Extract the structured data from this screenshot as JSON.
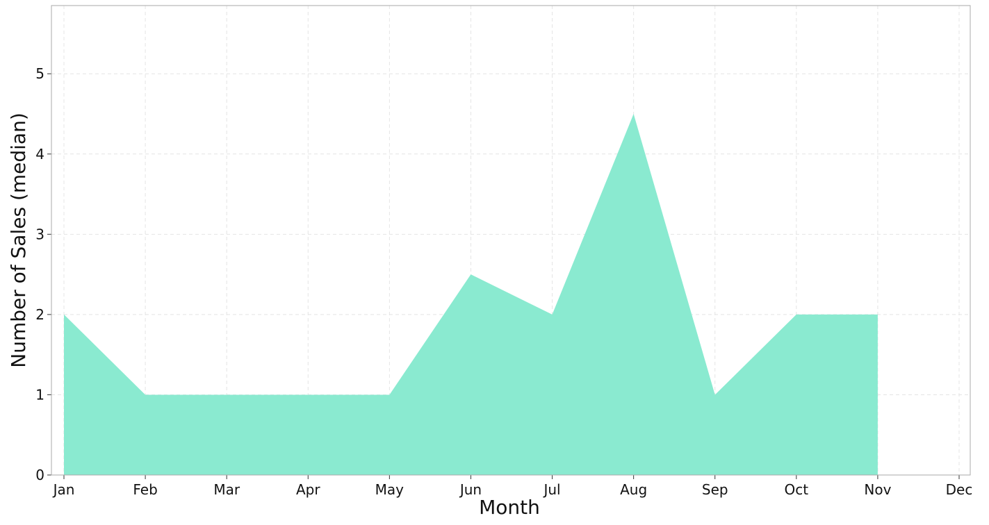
{
  "chart_data": {
    "type": "area",
    "x_label": "Month",
    "y_label": "Number of Sales (median)",
    "categories": [
      "Jan",
      "Feb",
      "Mar",
      "Apr",
      "May",
      "Jun",
      "Jul",
      "Aug",
      "Sep",
      "Oct",
      "Nov",
      "Dec"
    ],
    "values": [
      2,
      1,
      1,
      1,
      1,
      2.5,
      2,
      4.5,
      1,
      2,
      2,
      null
    ],
    "color": "#8aead0",
    "ylim": [
      0,
      5.85
    ],
    "yticks": [
      0,
      1,
      2,
      3,
      4,
      5
    ],
    "grid": true
  }
}
